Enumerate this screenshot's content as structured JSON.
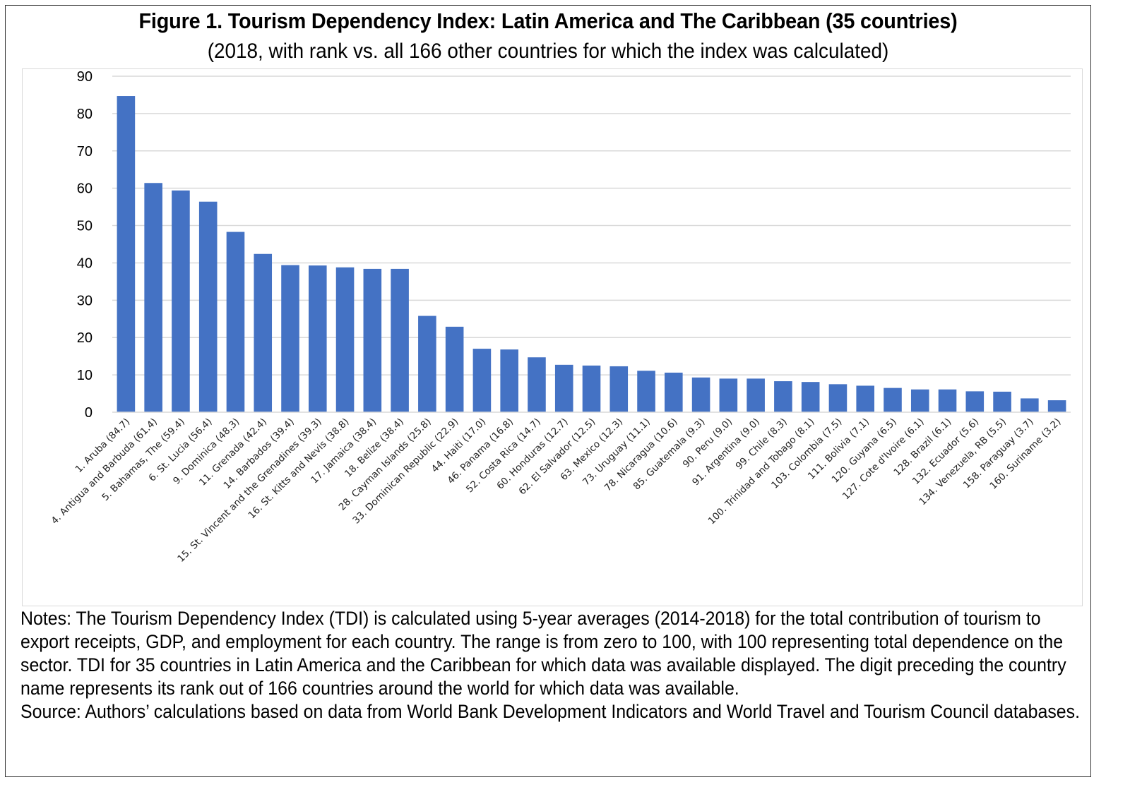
{
  "figure": {
    "title": "Figure 1. Tourism Dependency Index: Latin America and The Caribbean (35 countries)",
    "subtitle": "(2018, with rank vs. all 166 other countries for which the index was calculated)",
    "notes": "Notes: The Tourism Dependency Index (TDI) is calculated using 5-year averages (2014-2018) for the total contribution of tourism to export receipts, GDP, and employment for each country. The range is from zero to 100, with 100 representing total dependence on the sector. TDI for 35 countries in Latin America and the Caribbean for which data was available displayed. The digit preceding the country name represents its rank out of 166 countries around the world for which data was available.",
    "source": "Source: Authors’ calculations based on data from World Bank Development Indicators and World Travel and Tourism Council databases."
  },
  "chart_data": {
    "type": "bar",
    "title": "Figure 1. Tourism Dependency Index: Latin America and The Caribbean (35 countries)",
    "subtitle": "(2018, with rank vs. all 166 other countries for which the index was calculated)",
    "xlabel": "",
    "ylabel": "",
    "ylim": [
      0,
      90
    ],
    "yticks": [
      0,
      10,
      20,
      30,
      40,
      50,
      60,
      70,
      80,
      90
    ],
    "grid": true,
    "legend": "none",
    "bar_color": "#4472C4",
    "categories": [
      "1. Aruba (84.7)",
      "4. Antigua and Barbuda (61.4)",
      "5. Bahamas, The (59.4)",
      "6. St. Lucia (56.4)",
      "9. Dominica (48.3)",
      "11. Grenada (42.4)",
      "14. Barbados (39.4)",
      "15. St. Vincent and the Grenadines (39.3)",
      "16. St. Kitts and Nevis (38.8)",
      "17. Jamaica (38.4)",
      "18. Belize (38.4)",
      "28. Cayman Islands (25.8)",
      "33. Dominican Republic (22.9)",
      "44. Haiti (17.0)",
      "46. Panama (16.8)",
      "52. Costa Rica (14.7)",
      "60. Honduras (12.7)",
      "62. El Salvador (12.5)",
      "63. Mexico (12.3)",
      "73. Uruguay (11.1)",
      "78. Nicaragua (10.6)",
      "85. Guatemala (9.3)",
      "90. Peru (9.0)",
      "91. Argentina (9.0)",
      "99. Chile (8.3)",
      "100. Trinidad and Tobago (8.1)",
      "103. Colombia (7.5)",
      "111. Bolivia (7.1)",
      "120. Guyana (6.5)",
      "127. Cote d'Ivoire (6.1)",
      "128. Brazil (6.1)",
      "132. Ecuador (5.6)",
      "134. Venezuela, RB (5.5)",
      "158. Paraguay (3.7)",
      "160. Suriname (3.2)"
    ],
    "values": [
      84.7,
      61.4,
      59.4,
      56.4,
      48.3,
      42.4,
      39.4,
      39.3,
      38.8,
      38.4,
      38.4,
      25.8,
      22.9,
      17.0,
      16.8,
      14.7,
      12.7,
      12.5,
      12.3,
      11.1,
      10.6,
      9.3,
      9.0,
      9.0,
      8.3,
      8.1,
      7.5,
      7.1,
      6.5,
      6.1,
      6.1,
      5.6,
      5.5,
      3.7,
      3.2
    ]
  }
}
